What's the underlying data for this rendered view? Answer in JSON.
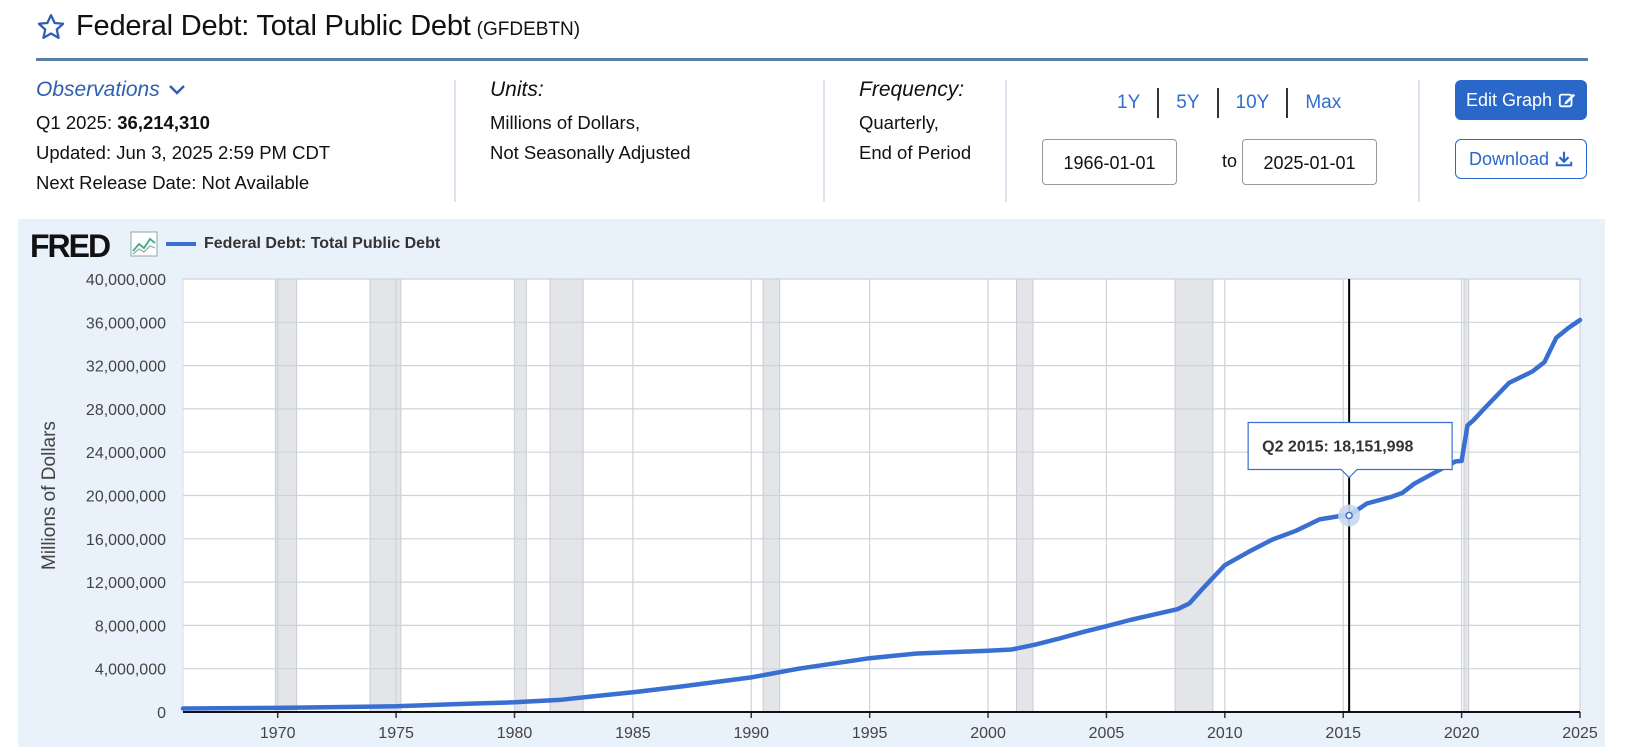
{
  "header": {
    "title": "Federal Debt: Total Public Debt",
    "series_code": "(GFDEBTN)"
  },
  "observations": {
    "label": "Observations",
    "latest_period": "Q1 2025:",
    "latest_value": "36,214,310",
    "updated": "Updated: Jun 3, 2025 2:59 PM CDT",
    "next_release": "Next Release Date: Not Available"
  },
  "units": {
    "label": "Units:",
    "line1": "Millions of Dollars,",
    "line2": "Not Seasonally Adjusted"
  },
  "frequency": {
    "label": "Frequency:",
    "line1": "Quarterly,",
    "line2": "End of Period"
  },
  "range": {
    "buttons": [
      "1Y",
      "5Y",
      "10Y",
      "Max"
    ],
    "from": "1966-01-01",
    "to_label": "to",
    "to": "2025-01-01"
  },
  "actions": {
    "edit_label": "Edit Graph",
    "download_label": "Download"
  },
  "logo": "FRED",
  "colors": {
    "accent": "#2967c9",
    "series": "#3a6fd2",
    "recession": "#e3e5e9",
    "chart_bg": "#e9f1fa"
  },
  "chart_data": {
    "type": "line",
    "title": "",
    "xlabel": "",
    "ylabel": "Millions of Dollars",
    "xlim": [
      1966.0,
      2025.0
    ],
    "ylim": [
      0,
      40000000
    ],
    "grid": true,
    "legend_position": "top-left",
    "x_ticks": [
      1970,
      1975,
      1980,
      1985,
      1990,
      1995,
      2000,
      2005,
      2010,
      2015,
      2020,
      2025
    ],
    "y_ticks": [
      0,
      4000000,
      8000000,
      12000000,
      16000000,
      20000000,
      24000000,
      28000000,
      32000000,
      36000000,
      40000000
    ],
    "y_tick_labels": [
      "0",
      "4,000,000",
      "8,000,000",
      "12,000,000",
      "16,000,000",
      "20,000,000",
      "24,000,000",
      "28,000,000",
      "32,000,000",
      "36,000,000",
      "40,000,000"
    ],
    "recessions": [
      [
        1969.9,
        1970.8
      ],
      [
        1973.9,
        1975.2
      ],
      [
        1980.0,
        1980.5
      ],
      [
        1981.5,
        1982.9
      ],
      [
        1990.5,
        1991.2
      ],
      [
        2001.2,
        2001.9
      ],
      [
        2007.9,
        2009.5
      ],
      [
        2020.1,
        2020.3
      ]
    ],
    "series": [
      {
        "name": "Federal Debt: Total Public Debt",
        "x": [
          1966.0,
          1970.0,
          1975.0,
          1978.0,
          1980.0,
          1982.0,
          1983.0,
          1985.0,
          1987.0,
          1990.0,
          1992.0,
          1995.0,
          1997.0,
          2000.0,
          2001.0,
          2002.0,
          2003.0,
          2004.0,
          2005.0,
          2006.0,
          2007.0,
          2008.0,
          2008.5,
          2009.0,
          2010.0,
          2011.0,
          2012.0,
          2013.0,
          2014.0,
          2015.0,
          2015.25,
          2016.0,
          2017.0,
          2017.5,
          2018.0,
          2019.0,
          2019.75,
          2020.0,
          2020.25,
          2020.5,
          2021.0,
          2022.0,
          2023.0,
          2023.5,
          2024.0,
          2024.5,
          2025.0
        ],
        "values": [
          320000,
          380000,
          530000,
          770000,
          900000,
          1140000,
          1380000,
          1820000,
          2350000,
          3200000,
          4000000,
          4970000,
          5400000,
          5660000,
          5770000,
          6230000,
          6780000,
          7380000,
          7930000,
          8500000,
          9000000,
          9500000,
          10020000,
          11250000,
          13560000,
          14790000,
          15930000,
          16740000,
          17790000,
          18150000,
          18151998,
          19260000,
          19850000,
          20240000,
          21090000,
          22280000,
          23150000,
          23200000,
          26480000,
          26950000,
          28130000,
          30400000,
          31460000,
          32330000,
          34580000,
          35460000,
          36214310
        ]
      }
    ],
    "tooltip": {
      "period": "Q2 2015:",
      "value": "18,151,998",
      "x": 2015.25,
      "y": 18151998
    }
  }
}
